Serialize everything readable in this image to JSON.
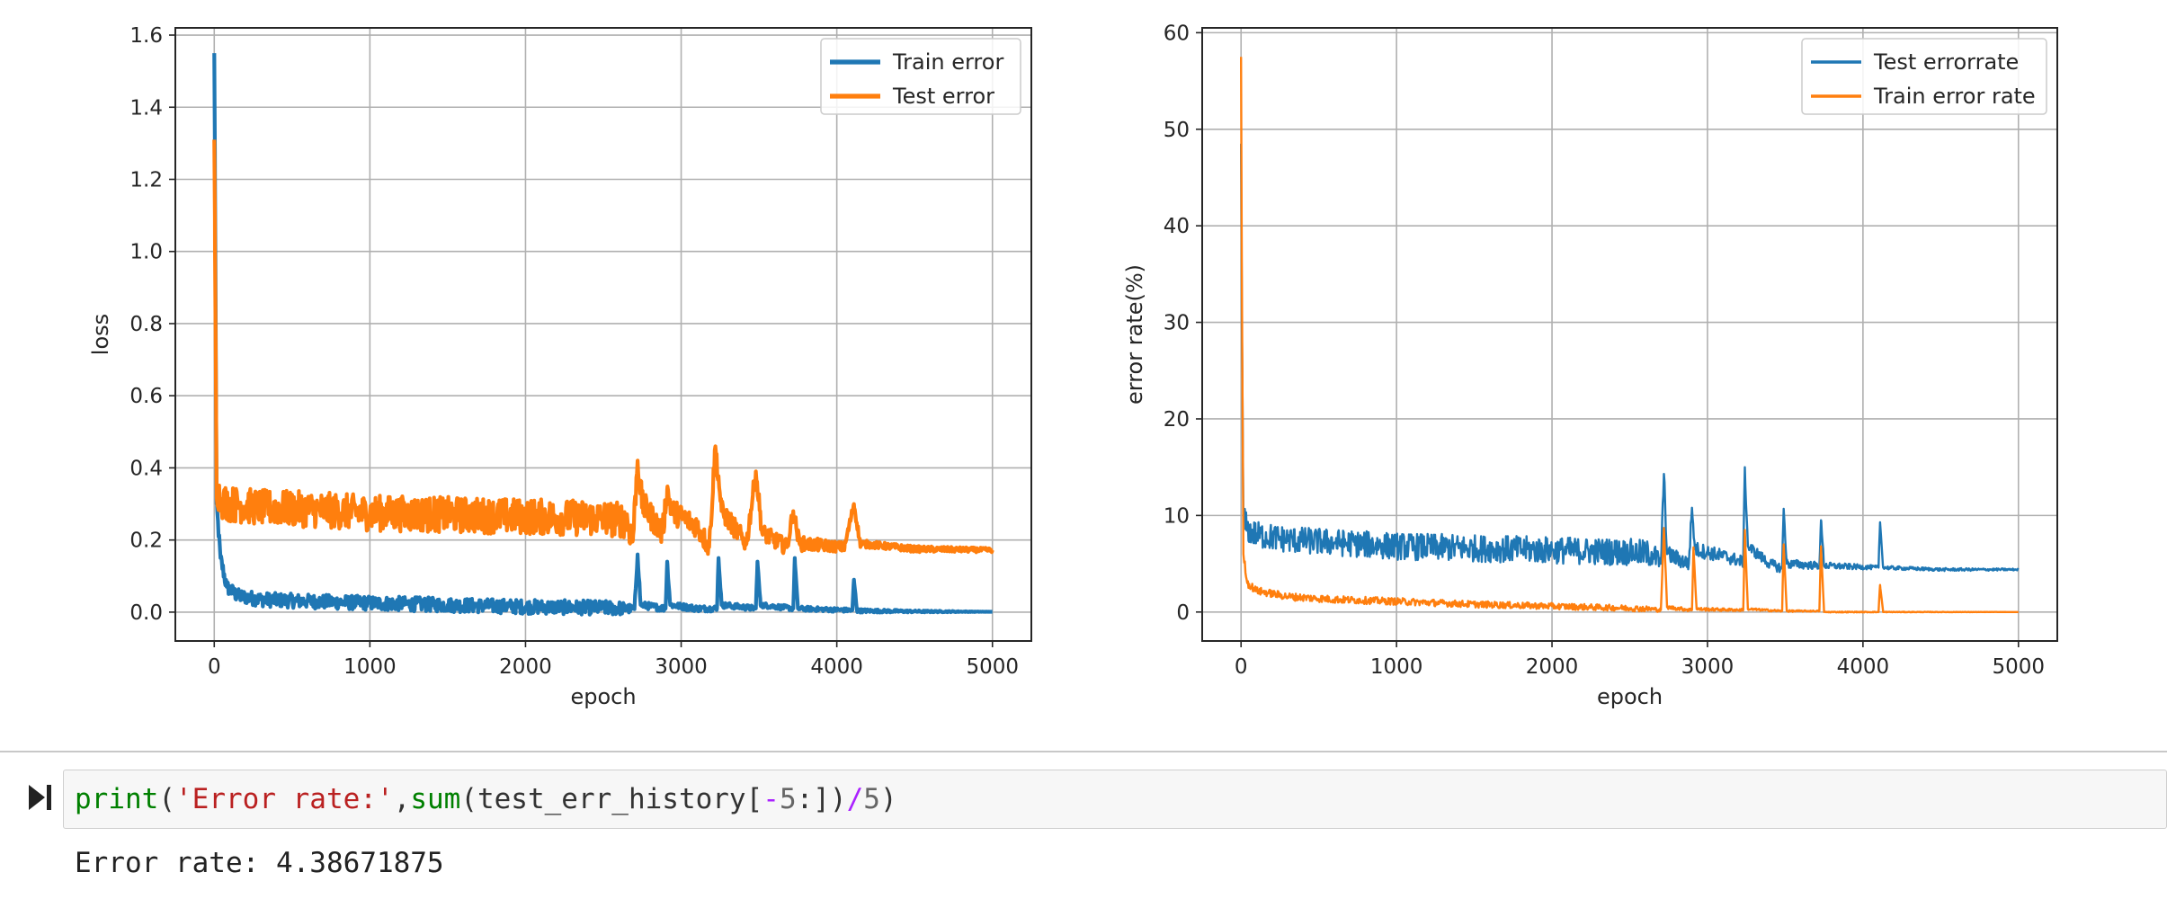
{
  "chart_data": [
    {
      "type": "line",
      "xlabel": "epoch",
      "ylabel": "loss",
      "xlim": [
        -250,
        5250
      ],
      "ylim": [
        -0.08,
        1.62
      ],
      "xticks": [
        0,
        1000,
        2000,
        3000,
        4000,
        5000
      ],
      "yticks": [
        0.0,
        0.2,
        0.4,
        0.6,
        0.8,
        1.0,
        1.2,
        1.4,
        1.6
      ],
      "ytick_labels": [
        "0.0",
        "0.2",
        "0.4",
        "0.6",
        "0.8",
        "1.0",
        "1.2",
        "1.4",
        "1.6"
      ],
      "grid": true,
      "legend": "top-right",
      "line_width": "thick",
      "series": [
        {
          "name": "Train error",
          "color": "#1f77b4",
          "points": [
            [
              0,
              1.55
            ],
            [
              5,
              1.2
            ],
            [
              15,
              0.3
            ],
            [
              40,
              0.15
            ],
            [
              80,
              0.07
            ],
            [
              150,
              0.045
            ],
            [
              300,
              0.035
            ],
            [
              600,
              0.03
            ],
            [
              1000,
              0.025
            ],
            [
              1500,
              0.02
            ],
            [
              2000,
              0.015
            ],
            [
              2500,
              0.012
            ],
            [
              2650,
              0.01
            ],
            [
              2700,
              0.008
            ],
            [
              2720,
              0.16
            ],
            [
              2740,
              0.02
            ],
            [
              2900,
              0.01
            ],
            [
              2910,
              0.14
            ],
            [
              2930,
              0.02
            ],
            [
              3100,
              0.01
            ],
            [
              3230,
              0.01
            ],
            [
              3240,
              0.15
            ],
            [
              3260,
              0.02
            ],
            [
              3480,
              0.01
            ],
            [
              3490,
              0.14
            ],
            [
              3510,
              0.02
            ],
            [
              3720,
              0.01
            ],
            [
              3730,
              0.15
            ],
            [
              3750,
              0.01
            ],
            [
              4100,
              0.005
            ],
            [
              4110,
              0.09
            ],
            [
              4130,
              0.004
            ],
            [
              4500,
              0.002
            ],
            [
              5000,
              0.001
            ]
          ],
          "noise_band": [
            [
              150,
              0.02
            ],
            [
              2600,
              0.02
            ],
            [
              2700,
              0.01
            ],
            [
              4200,
              0.005
            ],
            [
              5000,
              0.0
            ]
          ]
        },
        {
          "name": "Test error",
          "color": "#ff7f0e",
          "points": [
            [
              0,
              1.31
            ],
            [
              5,
              1.0
            ],
            [
              15,
              0.35
            ],
            [
              40,
              0.31
            ],
            [
              100,
              0.3
            ],
            [
              300,
              0.29
            ],
            [
              600,
              0.285
            ],
            [
              1000,
              0.275
            ],
            [
              1500,
              0.27
            ],
            [
              2000,
              0.265
            ],
            [
              2500,
              0.26
            ],
            [
              2650,
              0.255
            ],
            [
              2690,
              0.2
            ],
            [
              2720,
              0.42
            ],
            [
              2750,
              0.3
            ],
            [
              2880,
              0.22
            ],
            [
              2910,
              0.34
            ],
            [
              2940,
              0.28
            ],
            [
              3100,
              0.24
            ],
            [
              3180,
              0.18
            ],
            [
              3220,
              0.46
            ],
            [
              3260,
              0.28
            ],
            [
              3420,
              0.19
            ],
            [
              3480,
              0.39
            ],
            [
              3520,
              0.22
            ],
            [
              3680,
              0.18
            ],
            [
              3720,
              0.28
            ],
            [
              3760,
              0.19
            ],
            [
              4050,
              0.18
            ],
            [
              4110,
              0.3
            ],
            [
              4150,
              0.19
            ],
            [
              4500,
              0.175
            ],
            [
              5000,
              0.172
            ]
          ],
          "noise_band": [
            [
              40,
              0.05
            ],
            [
              2650,
              0.05
            ],
            [
              2700,
              0.04
            ],
            [
              3800,
              0.02
            ],
            [
              4200,
              0.01
            ],
            [
              5000,
              0.006
            ]
          ]
        }
      ]
    },
    {
      "type": "line",
      "xlabel": "epoch",
      "ylabel": "error rate(%)",
      "xlim": [
        -250,
        5250
      ],
      "ylim": [
        -3,
        60.5
      ],
      "xticks": [
        0,
        1000,
        2000,
        3000,
        4000,
        5000
      ],
      "yticks": [
        0,
        10,
        20,
        30,
        40,
        50,
        60
      ],
      "ytick_labels": [
        "0",
        "10",
        "20",
        "30",
        "40",
        "50",
        "60"
      ],
      "grid": true,
      "legend": "top-right",
      "line_width": "thin",
      "series": [
        {
          "name": "Test errorrate",
          "color": "#1f77b4",
          "points": [
            [
              0,
              48.5
            ],
            [
              5,
              30
            ],
            [
              15,
              10
            ],
            [
              40,
              8.5
            ],
            [
              100,
              8.0
            ],
            [
              300,
              7.5
            ],
            [
              600,
              7.2
            ],
            [
              1000,
              6.8
            ],
            [
              1500,
              6.6
            ],
            [
              2000,
              6.4
            ],
            [
              2500,
              6.2
            ],
            [
              2650,
              6.0
            ],
            [
              2700,
              5.0
            ],
            [
              2720,
              14.3
            ],
            [
              2740,
              6.0
            ],
            [
              2880,
              5.0
            ],
            [
              2900,
              10.8
            ],
            [
              2920,
              6.5
            ],
            [
              3100,
              5.8
            ],
            [
              3230,
              5.2
            ],
            [
              3240,
              15.0
            ],
            [
              3260,
              6.8
            ],
            [
              3400,
              5.0
            ],
            [
              3480,
              4.5
            ],
            [
              3490,
              10.7
            ],
            [
              3510,
              5.0
            ],
            [
              3720,
              4.8
            ],
            [
              3730,
              9.5
            ],
            [
              3750,
              4.8
            ],
            [
              4100,
              4.6
            ],
            [
              4110,
              9.3
            ],
            [
              4130,
              4.6
            ],
            [
              4500,
              4.4
            ],
            [
              5000,
              4.4
            ]
          ],
          "noise_band": [
            [
              40,
              1.4
            ],
            [
              2650,
              1.4
            ],
            [
              2700,
              0.9
            ],
            [
              3500,
              0.5
            ],
            [
              4100,
              0.2
            ],
            [
              5000,
              0.1
            ]
          ]
        },
        {
          "name": "Train error rate",
          "color": "#ff7f0e",
          "points": [
            [
              0,
              57.5
            ],
            [
              5,
              35
            ],
            [
              15,
              6
            ],
            [
              40,
              3.0
            ],
            [
              100,
              2.2
            ],
            [
              300,
              1.6
            ],
            [
              600,
              1.3
            ],
            [
              1000,
              1.1
            ],
            [
              1500,
              0.8
            ],
            [
              2000,
              0.6
            ],
            [
              2500,
              0.4
            ],
            [
              2650,
              0.3
            ],
            [
              2700,
              0.2
            ],
            [
              2720,
              8.7
            ],
            [
              2740,
              0.5
            ],
            [
              2900,
              0.2
            ],
            [
              2910,
              6.7
            ],
            [
              2930,
              0.3
            ],
            [
              3230,
              0.2
            ],
            [
              3240,
              8.5
            ],
            [
              3260,
              0.3
            ],
            [
              3480,
              0.1
            ],
            [
              3490,
              7.0
            ],
            [
              3510,
              0.1
            ],
            [
              3720,
              0.1
            ],
            [
              3730,
              6.8
            ],
            [
              3750,
              0.0
            ],
            [
              4100,
              0.0
            ],
            [
              4110,
              2.8
            ],
            [
              4130,
              0.0
            ],
            [
              5000,
              0.0
            ]
          ],
          "noise_band": [
            [
              40,
              0.4
            ],
            [
              2600,
              0.3
            ],
            [
              2700,
              0.2
            ],
            [
              3800,
              0.05
            ],
            [
              5000,
              0.0
            ]
          ]
        }
      ]
    }
  ],
  "code_cell": {
    "fn_print": "print",
    "paren_open": "(",
    "str_literal": "'Error rate:'",
    "comma": ",",
    "fn_sum": "sum",
    "arg_open": "(test_err_history[",
    "minus": "-",
    "five_a": "5",
    "slice_end": ":])",
    "div": "/",
    "five_b": "5",
    "paren_close": ")"
  },
  "output": {
    "text": "Error rate: 4.38671875"
  }
}
